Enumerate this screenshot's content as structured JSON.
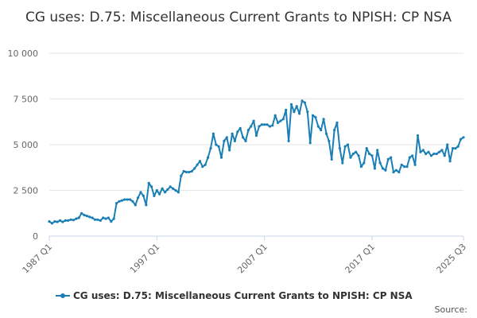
{
  "title": "CG uses: D.75: Miscellaneous Current Grants to NPISH: CP NSA",
  "legend_label": "CG uses: D.75: Miscellaneous Current Grants to NPISH: CP NSA",
  "source_label": "Source:",
  "colors": {
    "series": "#1a7fb5",
    "grid": "#e6e6e6",
    "axis": "#ccd6eb"
  },
  "chart_data": {
    "type": "line",
    "title": "CG uses: D.75: Miscellaneous Current Grants to NPISH: CP NSA",
    "xlabel": "",
    "ylabel": "",
    "x_tick_labels": [
      "1987 Q1",
      "1997 Q1",
      "2007 Q1",
      "2017 Q1",
      "2025 Q3"
    ],
    "y_tick_labels": [
      "0",
      "2 500",
      "5 000",
      "7 500",
      "10 000"
    ],
    "ylim": [
      0,
      10000
    ],
    "xlim": [
      1987.0,
      2025.5
    ],
    "grid": true,
    "legend_position": "bottom",
    "series": [
      {
        "name": "CG uses: D.75: Miscellaneous Current Grants to NPISH: CP NSA",
        "points": [
          [
            1987.0,
            800
          ],
          [
            1987.25,
            700
          ],
          [
            1987.5,
            800
          ],
          [
            1987.75,
            780
          ],
          [
            1988.0,
            850
          ],
          [
            1988.25,
            780
          ],
          [
            1988.5,
            850
          ],
          [
            1988.75,
            850
          ],
          [
            1989.0,
            900
          ],
          [
            1989.25,
            880
          ],
          [
            1989.5,
            950
          ],
          [
            1989.75,
            1000
          ],
          [
            1990.0,
            1250
          ],
          [
            1990.25,
            1150
          ],
          [
            1990.5,
            1100
          ],
          [
            1990.75,
            1050
          ],
          [
            1991.0,
            1000
          ],
          [
            1991.25,
            900
          ],
          [
            1991.5,
            900
          ],
          [
            1991.75,
            850
          ],
          [
            1992.0,
            1000
          ],
          [
            1992.25,
            950
          ],
          [
            1992.5,
            1000
          ],
          [
            1992.75,
            800
          ],
          [
            1993.0,
            950
          ],
          [
            1993.25,
            1800
          ],
          [
            1993.5,
            1900
          ],
          [
            1993.75,
            1950
          ],
          [
            1994.0,
            2000
          ],
          [
            1994.25,
            2000
          ],
          [
            1994.5,
            2000
          ],
          [
            1994.75,
            1900
          ],
          [
            1995.0,
            1700
          ],
          [
            1995.25,
            2100
          ],
          [
            1995.5,
            2400
          ],
          [
            1995.75,
            2200
          ],
          [
            1996.0,
            1700
          ],
          [
            1996.25,
            2900
          ],
          [
            1996.5,
            2700
          ],
          [
            1996.75,
            2200
          ],
          [
            1997.0,
            2500
          ],
          [
            1997.25,
            2300
          ],
          [
            1997.5,
            2600
          ],
          [
            1997.75,
            2400
          ],
          [
            1998.0,
            2550
          ],
          [
            1998.25,
            2700
          ],
          [
            1998.5,
            2600
          ],
          [
            1998.75,
            2500
          ],
          [
            1999.0,
            2400
          ],
          [
            1999.25,
            3300
          ],
          [
            1999.5,
            3550
          ],
          [
            1999.75,
            3500
          ],
          [
            2000.0,
            3500
          ],
          [
            2000.25,
            3550
          ],
          [
            2000.5,
            3700
          ],
          [
            2000.75,
            3900
          ],
          [
            2001.0,
            4100
          ],
          [
            2001.25,
            3800
          ],
          [
            2001.5,
            3900
          ],
          [
            2001.75,
            4300
          ],
          [
            2002.0,
            4800
          ],
          [
            2002.25,
            5600
          ],
          [
            2002.5,
            5000
          ],
          [
            2002.75,
            4900
          ],
          [
            2003.0,
            4300
          ],
          [
            2003.25,
            5200
          ],
          [
            2003.5,
            5400
          ],
          [
            2003.75,
            4700
          ],
          [
            2004.0,
            5600
          ],
          [
            2004.25,
            5200
          ],
          [
            2004.5,
            5700
          ],
          [
            2004.75,
            5900
          ],
          [
            2005.0,
            5400
          ],
          [
            2005.25,
            5200
          ],
          [
            2005.5,
            5800
          ],
          [
            2005.75,
            6000
          ],
          [
            2006.0,
            6300
          ],
          [
            2006.25,
            5500
          ],
          [
            2006.5,
            6000
          ],
          [
            2006.75,
            6100
          ],
          [
            2007.0,
            6100
          ],
          [
            2007.25,
            6100
          ],
          [
            2007.5,
            6000
          ],
          [
            2007.75,
            6050
          ],
          [
            2008.0,
            6600
          ],
          [
            2008.25,
            6200
          ],
          [
            2008.5,
            6300
          ],
          [
            2008.75,
            6400
          ],
          [
            2009.0,
            6900
          ],
          [
            2009.25,
            5200
          ],
          [
            2009.5,
            7200
          ],
          [
            2009.75,
            6800
          ],
          [
            2010.0,
            7100
          ],
          [
            2010.25,
            6700
          ],
          [
            2010.5,
            7400
          ],
          [
            2010.75,
            7300
          ],
          [
            2011.0,
            6800
          ],
          [
            2011.25,
            5100
          ],
          [
            2011.5,
            6600
          ],
          [
            2011.75,
            6500
          ],
          [
            2012.0,
            6000
          ],
          [
            2012.25,
            5800
          ],
          [
            2012.5,
            6400
          ],
          [
            2012.75,
            5600
          ],
          [
            2013.0,
            5200
          ],
          [
            2013.25,
            4200
          ],
          [
            2013.5,
            5800
          ],
          [
            2013.75,
            6200
          ],
          [
            2014.0,
            4800
          ],
          [
            2014.25,
            4000
          ],
          [
            2014.5,
            4900
          ],
          [
            2014.75,
            5000
          ],
          [
            2015.0,
            4300
          ],
          [
            2015.25,
            4500
          ],
          [
            2015.5,
            4600
          ],
          [
            2015.75,
            4400
          ],
          [
            2016.0,
            3800
          ],
          [
            2016.25,
            4000
          ],
          [
            2016.5,
            4800
          ],
          [
            2016.75,
            4500
          ],
          [
            2017.0,
            4400
          ],
          [
            2017.25,
            3700
          ],
          [
            2017.5,
            4700
          ],
          [
            2017.75,
            4000
          ],
          [
            2018.0,
            3700
          ],
          [
            2018.25,
            3600
          ],
          [
            2018.5,
            4200
          ],
          [
            2018.75,
            4300
          ],
          [
            2019.0,
            3500
          ],
          [
            2019.25,
            3600
          ],
          [
            2019.5,
            3500
          ],
          [
            2019.75,
            3900
          ],
          [
            2020.0,
            3800
          ],
          [
            2020.25,
            3800
          ],
          [
            2020.5,
            4300
          ],
          [
            2020.75,
            4400
          ],
          [
            2021.0,
            3900
          ],
          [
            2021.25,
            5500
          ],
          [
            2021.5,
            4600
          ],
          [
            2021.75,
            4700
          ],
          [
            2022.0,
            4500
          ],
          [
            2022.25,
            4600
          ],
          [
            2022.5,
            4400
          ],
          [
            2022.75,
            4500
          ],
          [
            2023.0,
            4500
          ],
          [
            2023.25,
            4600
          ],
          [
            2023.5,
            4700
          ],
          [
            2023.75,
            4400
          ],
          [
            2024.0,
            5000
          ],
          [
            2024.25,
            4100
          ],
          [
            2024.5,
            4800
          ],
          [
            2024.75,
            4800
          ],
          [
            2025.0,
            4900
          ],
          [
            2025.25,
            5300
          ],
          [
            2025.5,
            5400
          ]
        ]
      }
    ]
  }
}
